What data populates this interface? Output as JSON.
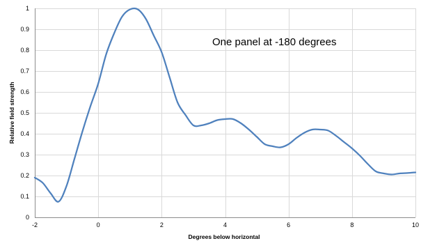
{
  "chart_data": {
    "type": "line",
    "title": "",
    "xlabel": "Degrees below horizontal",
    "ylabel": "Relative field strength",
    "annotation": "One panel at -180 degrees",
    "xlim": [
      -2,
      10
    ],
    "ylim": [
      0,
      1
    ],
    "xticks": [
      -2,
      0,
      2,
      4,
      6,
      8,
      10
    ],
    "yticks": [
      0,
      0.1,
      0.2,
      0.3,
      0.4,
      0.5,
      0.6,
      0.7,
      0.8,
      0.9,
      1
    ],
    "grid": true,
    "legend": "none",
    "series": [
      {
        "color": "#4f81bd",
        "x": [
          -2,
          -1.75,
          -1.5,
          -1.25,
          -1,
          -0.75,
          -0.5,
          -0.25,
          0,
          0.25,
          0.5,
          0.75,
          1,
          1.25,
          1.5,
          1.75,
          2,
          2.25,
          2.5,
          2.75,
          3,
          3.25,
          3.5,
          3.75,
          4,
          4.25,
          4.5,
          4.75,
          5,
          5.25,
          5.5,
          5.75,
          6,
          6.25,
          6.5,
          6.75,
          7,
          7.25,
          7.5,
          7.75,
          8,
          8.25,
          8.5,
          8.75,
          9,
          9.25,
          9.5,
          9.75,
          10
        ],
        "y": [
          0.19,
          0.165,
          0.115,
          0.075,
          0.15,
          0.28,
          0.41,
          0.53,
          0.64,
          0.78,
          0.88,
          0.96,
          0.995,
          0.995,
          0.95,
          0.87,
          0.79,
          0.67,
          0.55,
          0.49,
          0.44,
          0.44,
          0.45,
          0.465,
          0.47,
          0.47,
          0.45,
          0.42,
          0.385,
          0.35,
          0.34,
          0.335,
          0.35,
          0.38,
          0.405,
          0.42,
          0.42,
          0.415,
          0.39,
          0.36,
          0.33,
          0.295,
          0.255,
          0.22,
          0.21,
          0.205,
          0.21,
          0.212,
          0.215
        ]
      }
    ]
  }
}
